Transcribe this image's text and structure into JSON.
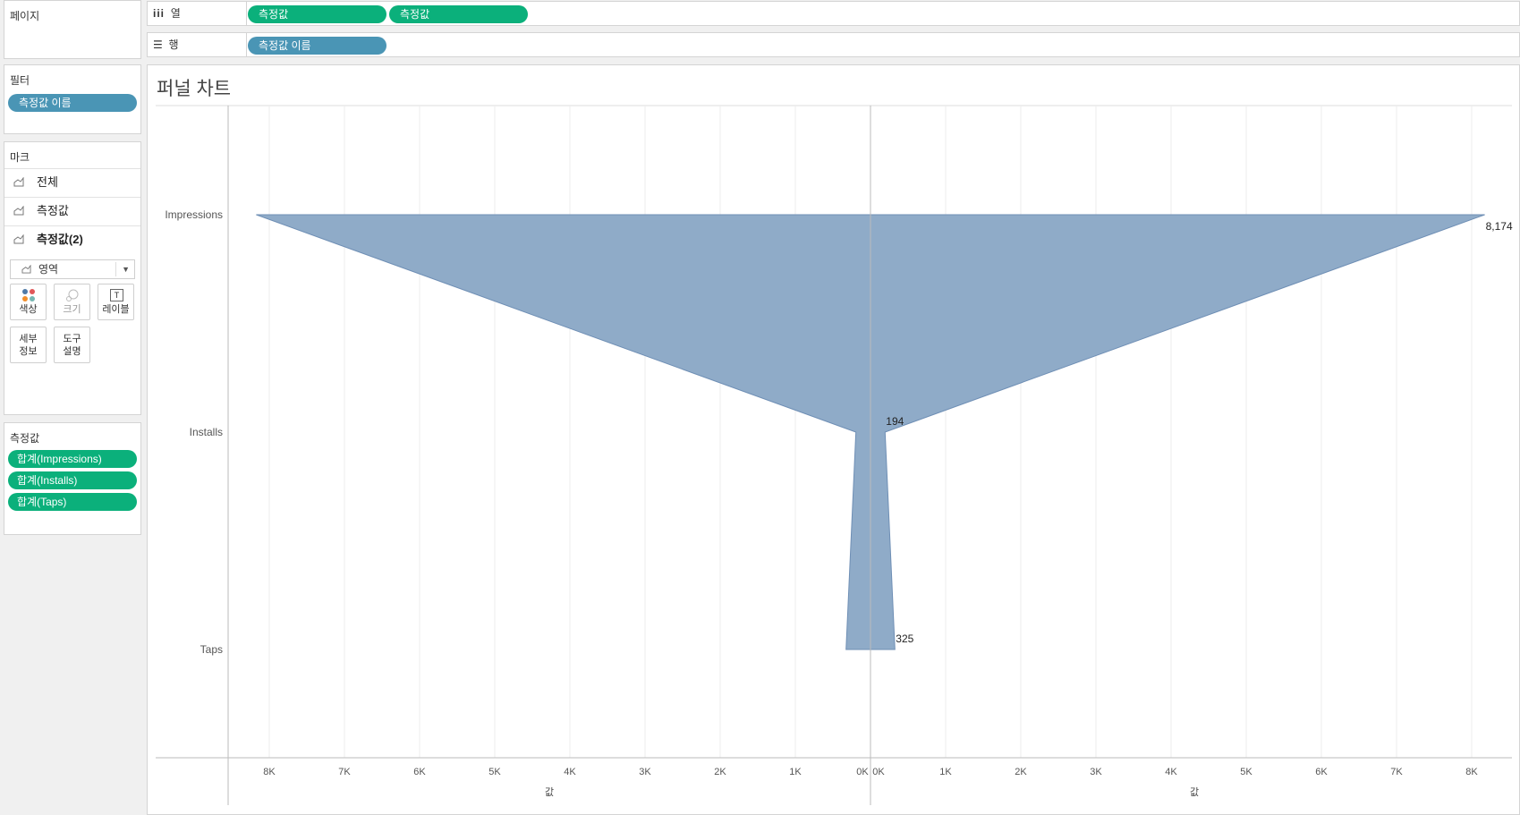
{
  "pages_panel": {
    "title": "페이지"
  },
  "shelves": {
    "columns": {
      "label": "열",
      "pills": [
        "측정값",
        "측정값"
      ]
    },
    "rows": {
      "label": "행",
      "pills": [
        "측정값 이름"
      ]
    }
  },
  "filters_panel": {
    "title": "필터",
    "pills": [
      "측정값 이름"
    ]
  },
  "marks_panel": {
    "title": "마크",
    "rows": [
      "전체",
      "측정값",
      "측정값(2)"
    ],
    "mark_type": "영역",
    "buttons": {
      "color": "색상",
      "size": "크기",
      "label": "레이블",
      "detail": "세부\n정보",
      "tooltip": "도구\n설명"
    }
  },
  "measure_values_panel": {
    "title": "측정값",
    "pills": [
      "합계(Impressions)",
      "합계(Installs)",
      "합계(Taps)"
    ]
  },
  "colors": {
    "green_pill": "#0bb07b",
    "blue_pill": "#4a95b5",
    "area_fill": "#8fabc8",
    "area_stroke": "#6f8fb5"
  },
  "chart_data": {
    "type": "area",
    "title": "퍼널 차트",
    "categories": [
      "Impressions",
      "Installs",
      "Taps"
    ],
    "series": [
      {
        "values": [
          8174,
          194,
          325
        ]
      }
    ],
    "data_labels": [
      "8,174",
      "194",
      "325"
    ],
    "left_axis": {
      "ticks": [
        "8K",
        "7K",
        "6K",
        "5K",
        "4K",
        "3K",
        "2K",
        "1K",
        "0K"
      ],
      "label": "값",
      "range": [
        8500,
        0
      ],
      "reversed": true
    },
    "right_axis": {
      "ticks": [
        "0K",
        "1K",
        "2K",
        "3K",
        "4K",
        "5K",
        "6K",
        "7K",
        "8K"
      ],
      "label": "값",
      "range": [
        0,
        8500
      ]
    },
    "grid": true
  }
}
